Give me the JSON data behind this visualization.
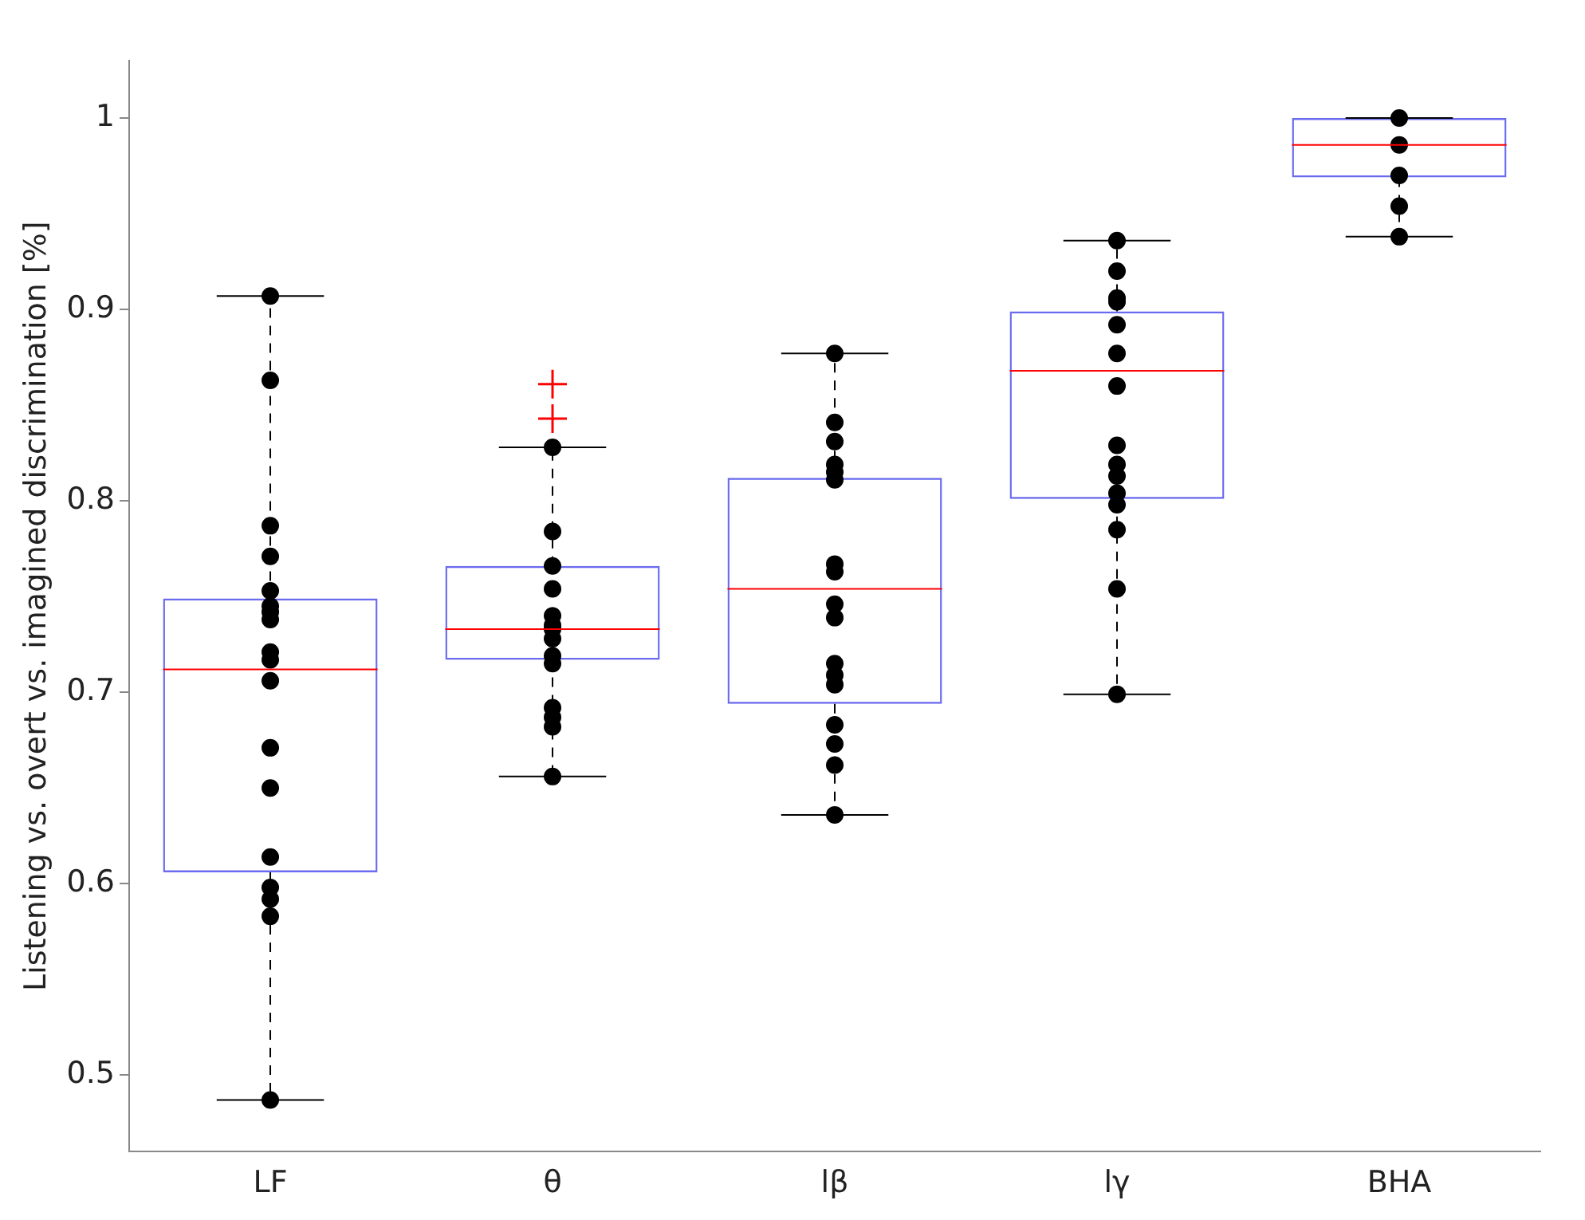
{
  "chart_data": {
    "type": "box",
    "ylabel": "Listening vs. overt vs. imagined discrimination [%]",
    "categories": [
      "LF",
      "θ",
      "lβ",
      "lγ",
      "BHA"
    ],
    "series": [
      {
        "type": "box",
        "color": "#6b6bf0",
        "boxes": [
          {
            "low": 0.487,
            "q1": 0.606,
            "median": 0.712,
            "q3": 0.749,
            "high": 0.907
          },
          {
            "low": 0.656,
            "q1": 0.717,
            "median": 0.733,
            "q3": 0.766,
            "high": 0.828,
            "outliers": [
              0.861,
              0.843
            ]
          },
          {
            "low": 0.636,
            "q1": 0.694,
            "median": 0.754,
            "q3": 0.812,
            "high": 0.877
          },
          {
            "low": 0.699,
            "q1": 0.801,
            "median": 0.868,
            "q3": 0.899,
            "high": 0.936
          },
          {
            "low": 0.938,
            "q1": 0.969,
            "median": 0.986,
            "q3": 1.0,
            "high": 1.0
          }
        ]
      },
      {
        "type": "scatter",
        "color": "#000000",
        "marker": "circle",
        "x": [
          "LF",
          "LF",
          "LF",
          "LF",
          "LF",
          "LF",
          "LF",
          "LF",
          "LF",
          "LF",
          "LF",
          "LF",
          "LF",
          "LF",
          "LF",
          "LF",
          "LF",
          "LF",
          "θ",
          "θ",
          "θ",
          "θ",
          "θ",
          "θ",
          "θ",
          "θ",
          "θ",
          "θ",
          "θ",
          "θ",
          "θ",
          "θ",
          "lβ",
          "lβ",
          "lβ",
          "lβ",
          "lβ",
          "lβ",
          "lβ",
          "lβ",
          "lβ",
          "lβ",
          "lβ",
          "lβ",
          "lβ",
          "lβ",
          "lβ",
          "lβ",
          "lβ",
          "lγ",
          "lγ",
          "lγ",
          "lγ",
          "lγ",
          "lγ",
          "lγ",
          "lγ",
          "lγ",
          "lγ",
          "lγ",
          "lγ",
          "lγ",
          "lγ",
          "lγ",
          "BHA",
          "BHA",
          "BHA",
          "BHA",
          "BHA"
        ],
        "values": [
          0.907,
          0.863,
          0.787,
          0.771,
          0.753,
          0.745,
          0.742,
          0.738,
          0.721,
          0.717,
          0.706,
          0.671,
          0.65,
          0.614,
          0.598,
          0.592,
          0.583,
          0.487,
          0.828,
          0.784,
          0.766,
          0.754,
          0.74,
          0.735,
          0.733,
          0.728,
          0.719,
          0.715,
          0.692,
          0.687,
          0.682,
          0.656,
          0.877,
          0.841,
          0.831,
          0.819,
          0.815,
          0.811,
          0.767,
          0.763,
          0.746,
          0.739,
          0.715,
          0.709,
          0.704,
          0.683,
          0.673,
          0.662,
          0.636,
          0.936,
          0.92,
          0.906,
          0.904,
          0.892,
          0.877,
          0.86,
          0.829,
          0.819,
          0.813,
          0.804,
          0.798,
          0.785,
          0.754,
          0.699,
          1.0,
          0.986,
          0.97,
          0.954,
          0.938
        ]
      }
    ],
    "ylim": [
      0.46,
      1.03
    ],
    "yticks": [
      0.5,
      0.6,
      0.7,
      0.8,
      0.9,
      1
    ],
    "grid": false,
    "legend": false
  }
}
